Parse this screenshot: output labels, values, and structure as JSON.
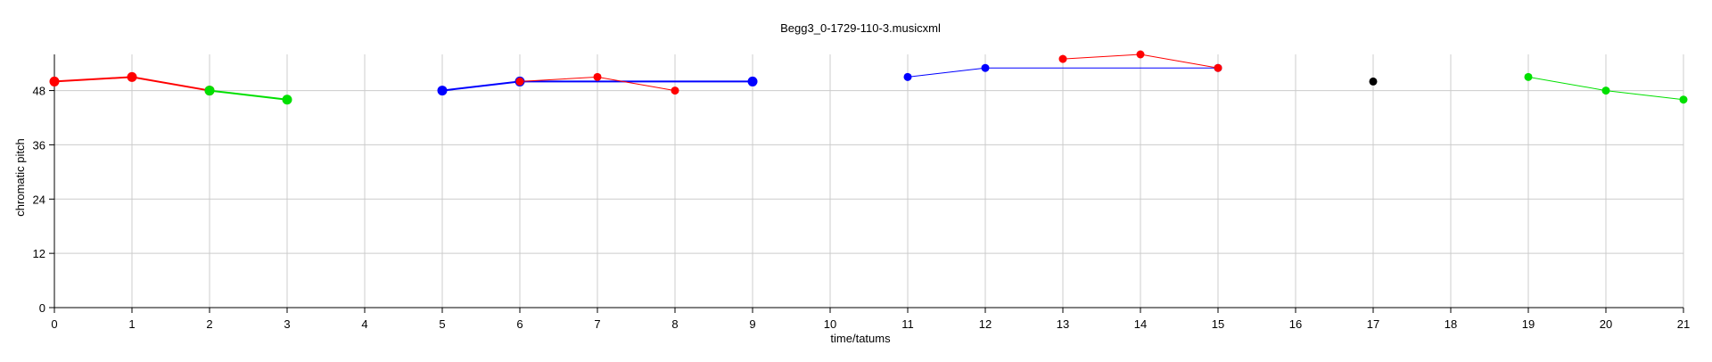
{
  "chart_data": {
    "type": "line",
    "title": "Begg3_0-1729-110-3.musicxml",
    "xlabel": "time/tatums",
    "ylabel": "chromatic pitch",
    "xlim": [
      0,
      21
    ],
    "ylim": [
      0,
      56
    ],
    "x_ticks": [
      0,
      1,
      2,
      3,
      4,
      5,
      6,
      7,
      8,
      9,
      10,
      11,
      12,
      13,
      14,
      15,
      16,
      17,
      18,
      19,
      20,
      21
    ],
    "y_ticks": [
      0,
      12,
      24,
      36,
      48
    ],
    "grid": true,
    "legend": false,
    "colors": {
      "red": "#ff0000",
      "green": "#00e000",
      "blue": "#0000ff",
      "black": "#000000",
      "grid": "#cccccc",
      "axis": "#000000"
    },
    "series": [
      {
        "color": "red",
        "width": "thick",
        "x": [
          0,
          1,
          2
        ],
        "y": [
          50,
          51,
          48
        ]
      },
      {
        "color": "green",
        "width": "thick",
        "x": [
          2,
          3
        ],
        "y": [
          48,
          46
        ]
      },
      {
        "color": "blue",
        "width": "thick",
        "x": [
          5,
          6,
          9
        ],
        "y": [
          48,
          50,
          50
        ]
      },
      {
        "color": "red",
        "width": "thin",
        "x": [
          6,
          7,
          8
        ],
        "y": [
          50,
          51,
          48
        ]
      },
      {
        "color": "blue",
        "width": "thin",
        "x": [
          11,
          12,
          15
        ],
        "y": [
          51,
          53,
          53
        ]
      },
      {
        "color": "red",
        "width": "thin",
        "x": [
          13,
          14,
          15
        ],
        "y": [
          55,
          56,
          53
        ]
      },
      {
        "color": "black",
        "width": "thin",
        "x": [
          17
        ],
        "y": [
          50
        ]
      },
      {
        "color": "green",
        "width": "thin",
        "x": [
          19,
          20,
          21
        ],
        "y": [
          51,
          48,
          46
        ]
      }
    ]
  }
}
